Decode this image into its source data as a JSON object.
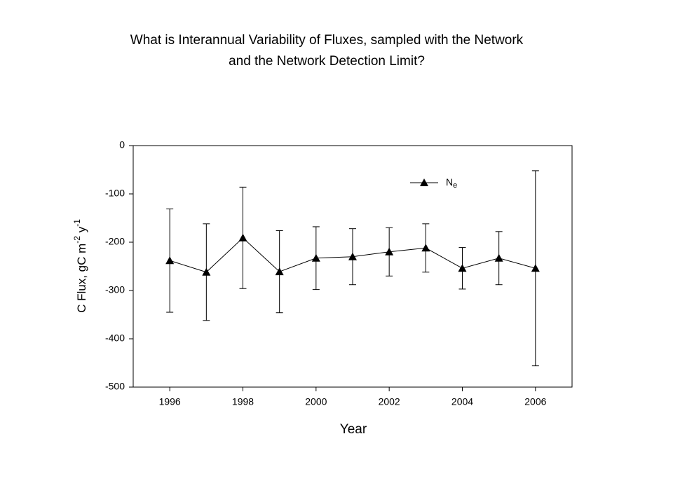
{
  "chart_data": {
    "type": "line",
    "title": [
      "What is Interannual Variability of Fluxes, sampled with the Network",
      "and the Network Detection Limit?"
    ],
    "xlabel": "Year",
    "ylabel": [
      "C Flux, gC m",
      "-2",
      " y",
      "-1"
    ],
    "x": [
      1996,
      1997,
      1998,
      1999,
      2000,
      2001,
      2002,
      2003,
      2004,
      2005,
      2006
    ],
    "series": [
      {
        "name": "N",
        "name_subscript": "e",
        "color": "#000000",
        "values": [
          -238,
          -262,
          -191,
          -261,
          -233,
          -230,
          -220,
          -212,
          -254,
          -233,
          -254
        ],
        "errors": [
          107,
          100,
          105,
          85,
          65,
          58,
          50,
          50,
          43,
          55,
          202
        ]
      }
    ],
    "xlim": [
      1995,
      2007
    ],
    "xticks": [
      1996,
      1998,
      2000,
      2002,
      2004,
      2006
    ],
    "ylim": [
      -500,
      0
    ],
    "yticks": [
      0,
      -100,
      -200,
      -300,
      -400,
      -500
    ],
    "grid": false,
    "legend": "upper right"
  }
}
